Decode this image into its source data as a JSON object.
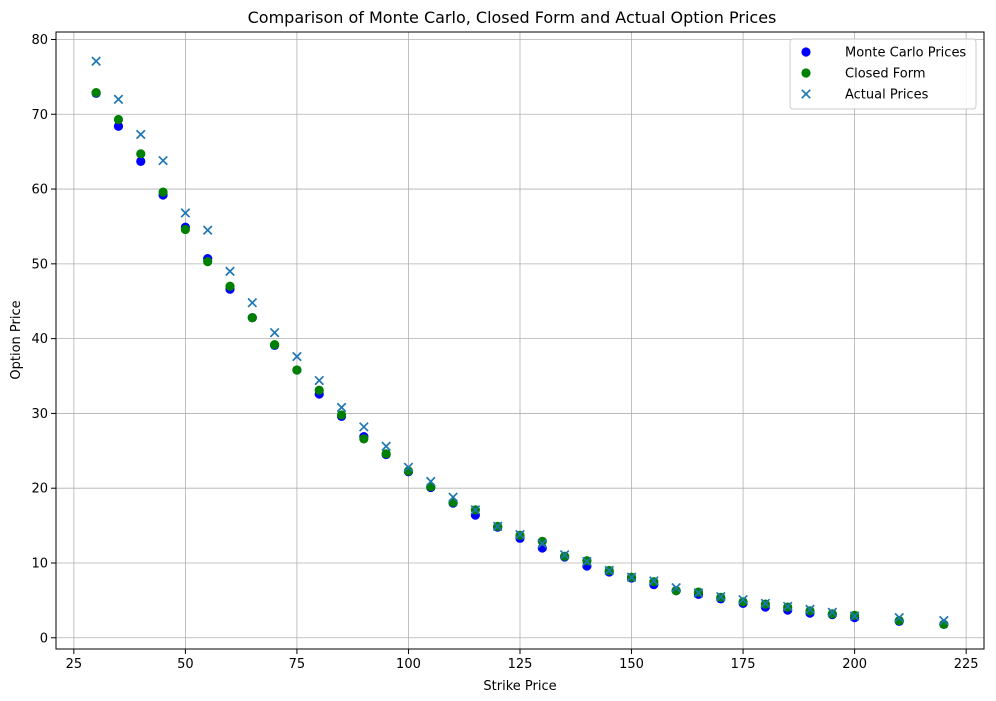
{
  "chart_data": {
    "type": "scatter",
    "title": "Comparison of Monte Carlo, Closed Form and Actual Option Prices",
    "xlabel": "Strike Price",
    "ylabel": "Option Price",
    "xlim": [
      21,
      229
    ],
    "ylim": [
      -1.5,
      81
    ],
    "xticks": [
      25,
      50,
      75,
      100,
      125,
      150,
      175,
      200,
      225
    ],
    "yticks": [
      0,
      10,
      20,
      30,
      40,
      50,
      60,
      70,
      80
    ],
    "grid": true,
    "legend_position": "top-right",
    "series": [
      {
        "name": "Monte Carlo Prices",
        "marker": "circle",
        "color": "#0000ff",
        "x": [
          30,
          35,
          40,
          45,
          50,
          55,
          60,
          65,
          70,
          75,
          80,
          85,
          90,
          95,
          100,
          105,
          110,
          115,
          120,
          125,
          130,
          135,
          140,
          145,
          150,
          155,
          160,
          165,
          170,
          175,
          180,
          185,
          190,
          195,
          200,
          210,
          220
        ],
        "y": [
          72.8,
          68.4,
          63.7,
          59.2,
          54.9,
          50.7,
          46.6,
          42.8,
          39.1,
          35.8,
          32.6,
          29.6,
          26.9,
          24.5,
          22.2,
          20.1,
          18.0,
          16.4,
          14.8,
          13.3,
          12.0,
          10.8,
          9.6,
          8.8,
          8.0,
          7.1,
          6.3,
          5.8,
          5.2,
          4.6,
          4.1,
          3.7,
          3.3,
          3.1,
          2.7,
          2.2,
          1.8
        ]
      },
      {
        "name": "Closed Form",
        "marker": "circle",
        "color": "#008000",
        "x": [
          30,
          35,
          40,
          45,
          50,
          55,
          60,
          65,
          70,
          75,
          80,
          85,
          90,
          95,
          100,
          105,
          110,
          115,
          120,
          125,
          130,
          135,
          140,
          145,
          150,
          155,
          160,
          165,
          170,
          175,
          180,
          185,
          190,
          195,
          200,
          210,
          220
        ],
        "y": [
          72.9,
          69.3,
          64.7,
          59.6,
          54.6,
          50.3,
          47.0,
          42.8,
          39.2,
          35.8,
          33.1,
          29.8,
          26.6,
          24.6,
          22.3,
          20.2,
          18.1,
          17.1,
          14.9,
          13.7,
          12.9,
          10.9,
          10.3,
          9.0,
          8.1,
          7.5,
          6.3,
          6.1,
          5.4,
          4.8,
          4.5,
          4.1,
          3.6,
          3.2,
          3.0,
          2.3,
          1.8
        ]
      },
      {
        "name": "Actual Prices",
        "marker": "x",
        "color": "#1f77b4",
        "x": [
          30,
          35,
          40,
          45,
          50,
          55,
          60,
          65,
          70,
          75,
          80,
          85,
          90,
          95,
          100,
          105,
          110,
          115,
          120,
          125,
          130,
          135,
          140,
          145,
          150,
          155,
          160,
          165,
          170,
          175,
          180,
          185,
          190,
          195,
          200,
          210,
          220
        ],
        "y": [
          77.1,
          72.0,
          67.3,
          63.8,
          56.8,
          54.5,
          49.0,
          44.8,
          40.8,
          37.6,
          34.4,
          30.8,
          28.2,
          25.6,
          22.8,
          20.9,
          18.8,
          17.1,
          14.9,
          13.8,
          12.6,
          11.1,
          10.2,
          9.0,
          8.1,
          7.6,
          6.7,
          6.0,
          5.5,
          5.1,
          4.6,
          4.2,
          3.8,
          3.4,
          2.9,
          2.7,
          2.3
        ]
      }
    ]
  }
}
